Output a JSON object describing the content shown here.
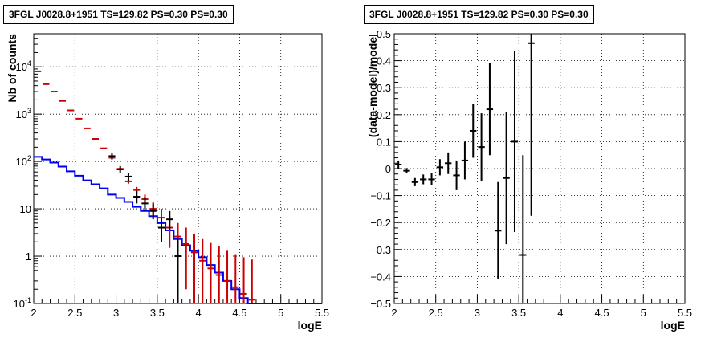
{
  "chart_data": [
    {
      "type": "line",
      "title": "3FGL J0028.8+1951 TS=129.82 PS=0.30 PS=0.30",
      "xlabel": "logE",
      "ylabel": "Nb of counts",
      "xlim": [
        2,
        5.5
      ],
      "ylim": [
        0.1,
        50000
      ],
      "yscale": "log",
      "grid": true,
      "xticks": [
        "2",
        "2.5",
        "3",
        "3.5",
        "4",
        "4.5",
        "5",
        "5.5"
      ],
      "yticks": [
        {
          "value": 0.1,
          "label": "10",
          "exp": "-1"
        },
        {
          "value": 1,
          "label": "1",
          "exp": ""
        },
        {
          "value": 10,
          "label": "10",
          "exp": ""
        },
        {
          "value": 100,
          "label": "10",
          "exp": "2"
        },
        {
          "value": 1000,
          "label": "10",
          "exp": "3"
        },
        {
          "value": 10000,
          "label": "10",
          "exp": "4"
        }
      ],
      "series": [
        {
          "kind": "step",
          "color": "#0000ee",
          "bin_width": 0.1,
          "x": [
            2.05,
            2.15,
            2.25,
            2.35,
            2.45,
            2.55,
            2.65,
            2.75,
            2.85,
            2.95,
            3.05,
            3.15,
            3.25,
            3.35,
            3.45,
            3.55,
            3.65,
            3.75,
            3.85,
            3.95,
            4.05,
            4.15,
            4.25,
            4.35,
            4.45,
            4.55,
            4.65,
            4.75,
            4.85,
            4.95,
            5.05,
            5.15,
            5.25,
            5.35,
            5.45
          ],
          "y": [
            125,
            110,
            95,
            78,
            62,
            50,
            40,
            33,
            27,
            20,
            17,
            14,
            11,
            9,
            7,
            5,
            3.5,
            2.3,
            1.7,
            1.3,
            0.95,
            0.65,
            0.45,
            0.3,
            0.2,
            0.13,
            0.1,
            0.1,
            0.1,
            0.1,
            0.1,
            0.1,
            0.1,
            0.1,
            0.1
          ]
        },
        {
          "kind": "errorbar",
          "color": "#cc0000",
          "x": [
            2.05,
            2.15,
            2.25,
            2.35,
            2.45,
            2.55,
            2.65,
            2.75,
            2.85,
            2.95,
            3.05,
            3.15,
            3.25,
            3.35,
            3.45,
            3.55,
            3.65,
            3.75,
            3.85,
            3.95,
            4.05,
            4.15,
            4.25,
            4.35,
            4.45,
            4.55,
            4.65
          ],
          "y": [
            8000,
            4300,
            3000,
            1900,
            1200,
            800,
            500,
            300,
            190,
            120,
            70,
            38,
            25,
            16,
            10,
            6.5,
            4,
            2.6,
            1.8,
            1.2,
            0.8,
            0.55,
            0.4,
            0.3,
            0.22,
            0.16,
            0.12
          ],
          "ylo": [
            7900,
            4200,
            2950,
            1870,
            1180,
            785,
            490,
            294,
            185,
            116,
            66,
            34,
            21,
            12.5,
            6.5,
            3.5,
            1.5,
            0.6,
            0.2,
            0.1,
            0.1,
            0.1,
            0.1,
            0.1,
            0.1,
            0.1,
            0.1
          ],
          "yhi": [
            8100,
            4400,
            3050,
            1930,
            1220,
            815,
            510,
            306,
            195,
            124,
            74,
            42,
            29,
            20,
            14,
            10,
            7,
            5,
            4,
            3,
            2.3,
            1.9,
            1.6,
            1.3,
            1.1,
            0.95,
            0.85
          ]
        },
        {
          "kind": "errorbar",
          "color": "#000000",
          "x": [
            2.95,
            3.05,
            3.15,
            3.25,
            3.35,
            3.45,
            3.55,
            3.65,
            3.75
          ],
          "y": [
            130,
            68,
            48,
            18,
            13,
            9,
            4,
            6,
            1
          ],
          "ylo": [
            110,
            58,
            38,
            13,
            9,
            6,
            2,
            3.5,
            0.1
          ],
          "yhi": [
            150,
            80,
            58,
            24,
            18,
            13,
            6.5,
            9,
            2.3
          ]
        }
      ]
    },
    {
      "type": "scatter",
      "title": "3FGL J0028.8+1951 TS=129.82 PS=0.30 PS=0.30",
      "xlabel": "logE",
      "ylabel": "(data-model)/model",
      "xlim": [
        2,
        5.5
      ],
      "ylim": [
        -0.5,
        0.5
      ],
      "grid": true,
      "xticks": [
        "2",
        "2.5",
        "3",
        "3.5",
        "4",
        "4.5",
        "5",
        "5.5"
      ],
      "yticks": [
        "−0.5",
        "−0.4",
        "−0.3",
        "−0.2",
        "−0.1",
        "0",
        "0.1",
        "0.2",
        "0.3",
        "0.4",
        "0.5"
      ],
      "series": [
        {
          "kind": "errorbar",
          "color": "#000000",
          "x": [
            2.05,
            2.15,
            2.25,
            2.35,
            2.45,
            2.55,
            2.65,
            2.75,
            2.85,
            2.95,
            3.05,
            3.15,
            3.25,
            3.35,
            3.45,
            3.55,
            3.65
          ],
          "y": [
            0.015,
            -0.008,
            -0.05,
            -0.04,
            -0.04,
            0.005,
            0.02,
            -0.025,
            0.03,
            0.14,
            0.08,
            0.22,
            -0.23,
            -0.035,
            0.1,
            -0.32,
            0.465
          ],
          "yerr": [
            0.015,
            0.01,
            0.015,
            0.018,
            0.022,
            0.03,
            0.04,
            0.055,
            0.07,
            0.1,
            0.125,
            0.17,
            0.18,
            0.245,
            0.335,
            0.37,
            0.64
          ]
        }
      ]
    }
  ]
}
